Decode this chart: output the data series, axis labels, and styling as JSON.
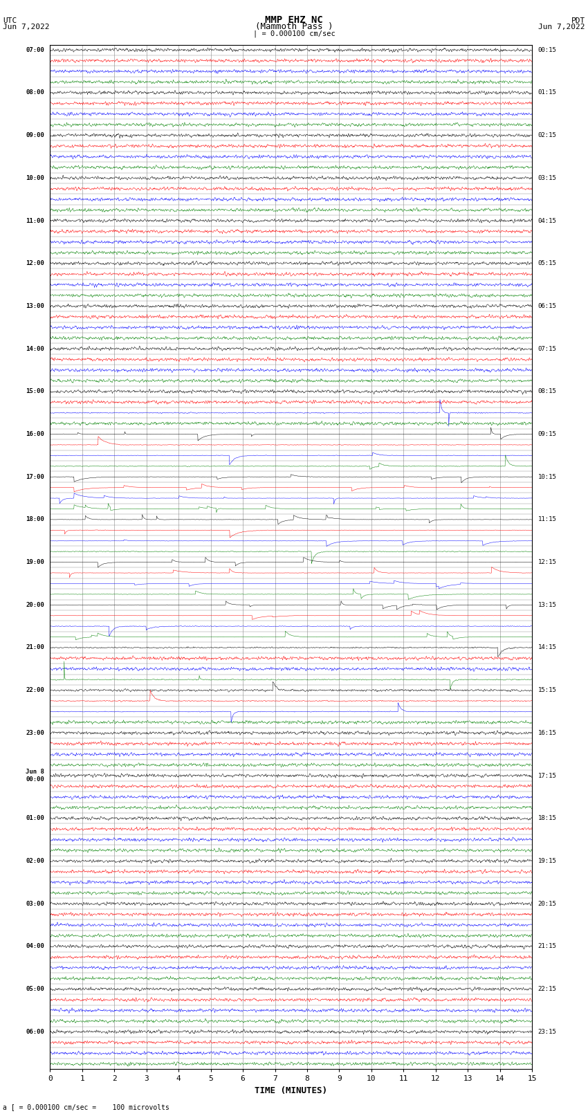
{
  "title_line1": "MMP EHZ NC",
  "title_line2": "(Mammoth Pass )",
  "scale_label": "| = 0.000100 cm/sec",
  "left_label_line1": "UTC",
  "left_label_line2": "Jun 7,2022",
  "right_label_line1": "PDT",
  "right_label_line2": "Jun 7,2022",
  "bottom_label": "a [ = 0.000100 cm/sec =    100 microvolts",
  "xlabel": "TIME (MINUTES)",
  "num_rows": 96,
  "bg_color": "#ffffff",
  "grid_color": "#888888",
  "trace_colors": [
    "black",
    "red",
    "blue",
    "green"
  ],
  "fig_width": 8.5,
  "fig_height": 16.13,
  "dpi": 100,
  "left_time_labels": [
    "07:00",
    "",
    "",
    "",
    "08:00",
    "",
    "",
    "",
    "09:00",
    "",
    "",
    "",
    "10:00",
    "",
    "",
    "",
    "11:00",
    "",
    "",
    "",
    "12:00",
    "",
    "",
    "",
    "13:00",
    "",
    "",
    "",
    "14:00",
    "",
    "",
    "",
    "15:00",
    "",
    "",
    "",
    "16:00",
    "",
    "",
    "",
    "17:00",
    "",
    "",
    "",
    "18:00",
    "",
    "",
    "",
    "19:00",
    "",
    "",
    "",
    "20:00",
    "",
    "",
    "",
    "21:00",
    "",
    "",
    "",
    "22:00",
    "",
    "",
    "",
    "23:00",
    "",
    "",
    "",
    "Jun 8\n00:00",
    "",
    "",
    "",
    "01:00",
    "",
    "",
    "",
    "02:00",
    "",
    "",
    "",
    "03:00",
    "",
    "",
    "",
    "04:00",
    "",
    "",
    "",
    "05:00",
    "",
    "",
    "",
    "06:00",
    "",
    "",
    ""
  ],
  "right_time_labels": [
    "00:15",
    "",
    "",
    "",
    "01:15",
    "",
    "",
    "",
    "02:15",
    "",
    "",
    "",
    "03:15",
    "",
    "",
    "",
    "04:15",
    "",
    "",
    "",
    "05:15",
    "",
    "",
    "",
    "06:15",
    "",
    "",
    "",
    "07:15",
    "",
    "",
    "",
    "08:15",
    "",
    "",
    "",
    "09:15",
    "",
    "",
    "",
    "10:15",
    "",
    "",
    "",
    "11:15",
    "",
    "",
    "",
    "12:15",
    "",
    "",
    "",
    "13:15",
    "",
    "",
    "",
    "14:15",
    "",
    "",
    "",
    "15:15",
    "",
    "",
    "",
    "16:15",
    "",
    "",
    "",
    "17:15",
    "",
    "",
    "",
    "18:15",
    "",
    "",
    "",
    "19:15",
    "",
    "",
    "",
    "20:15",
    "",
    "",
    "",
    "21:15",
    "",
    "",
    "",
    "22:15",
    "",
    "",
    "",
    "23:15",
    "",
    "",
    ""
  ]
}
